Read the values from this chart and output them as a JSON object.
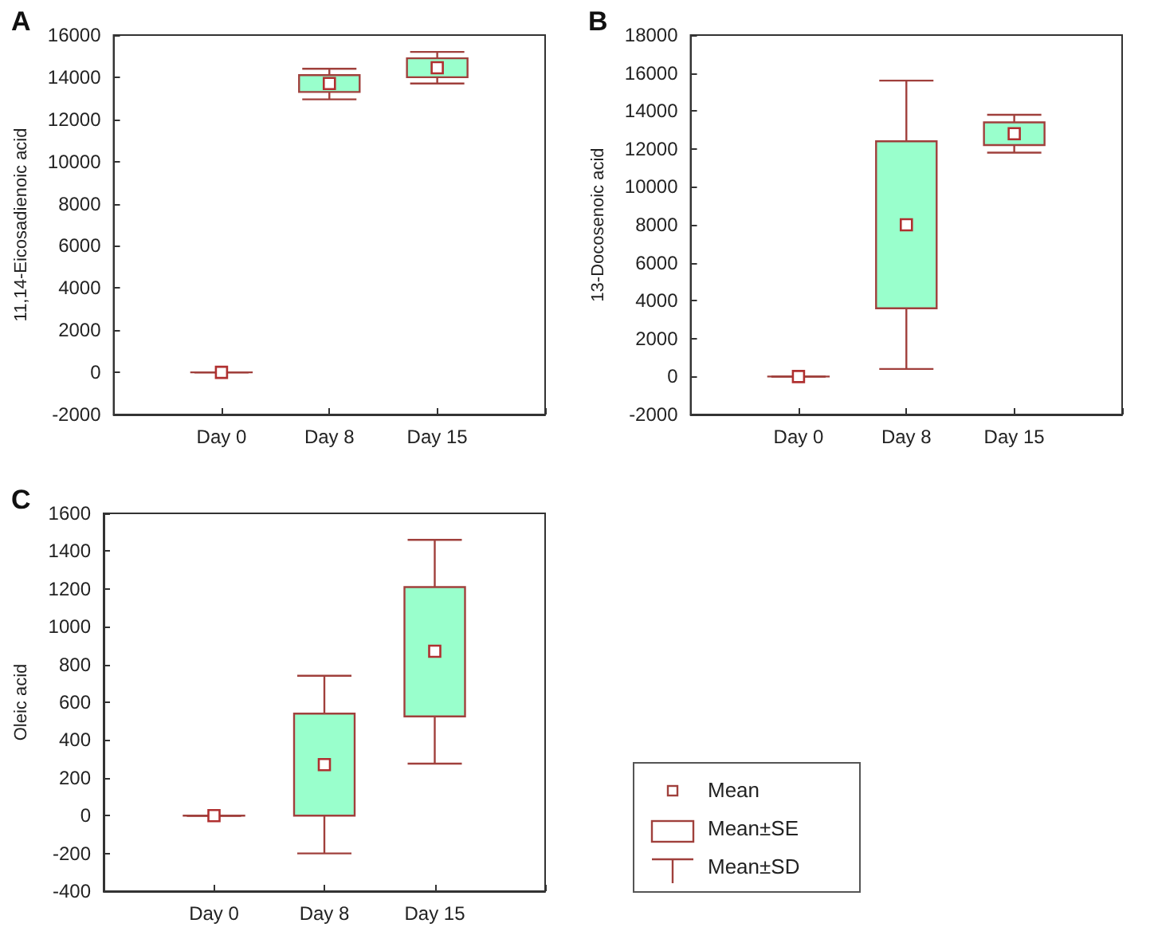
{
  "chart_data": [
    {
      "type": "box",
      "title": "A",
      "ylabel": "11,14-Eicosadienoic acid",
      "categories": [
        "Day 0",
        "Day 8",
        "Day 15"
      ],
      "color": "#99ffcc",
      "ylim": [
        -2000,
        16000
      ],
      "yticks": [
        -2000,
        0,
        2000,
        4000,
        6000,
        8000,
        10000,
        12000,
        14000,
        16000
      ],
      "boxes": [
        {
          "low": 0,
          "q1": 0,
          "q3": 0,
          "high": 0,
          "mean": 0
        },
        {
          "low": 12950,
          "q1": 13300,
          "q3": 14100,
          "high": 14400,
          "mean": 13700
        },
        {
          "low": 13700,
          "q1": 14000,
          "q3": 14900,
          "high": 15200,
          "mean": 14450
        }
      ]
    },
    {
      "type": "box",
      "title": "B",
      "ylabel": "13-Docosenoic acid",
      "categories": [
        "Day 0",
        "Day 8",
        "Day 15"
      ],
      "color": "#99ffcc",
      "ylim": [
        -2000,
        18000
      ],
      "yticks": [
        -2000,
        0,
        2000,
        4000,
        6000,
        8000,
        10000,
        12000,
        14000,
        16000,
        18000
      ],
      "boxes": [
        {
          "low": 0,
          "q1": 0,
          "q3": 0,
          "high": 0,
          "mean": 0
        },
        {
          "low": 400,
          "q1": 3600,
          "q3": 12400,
          "high": 15600,
          "mean": 8000
        },
        {
          "low": 11800,
          "q1": 12200,
          "q3": 13400,
          "high": 13800,
          "mean": 12800
        }
      ]
    },
    {
      "type": "box",
      "title": "C",
      "ylabel": "Oleic acid",
      "categories": [
        "Day 0",
        "Day 8",
        "Day 15"
      ],
      "color": "#99ffcc",
      "ylim": [
        -400,
        1600
      ],
      "yticks": [
        -400,
        -200,
        0,
        200,
        400,
        600,
        800,
        1000,
        1200,
        1400,
        1600
      ],
      "boxes": [
        {
          "low": 0,
          "q1": 0,
          "q3": 0,
          "high": 0,
          "mean": 0
        },
        {
          "low": -200,
          "q1": 0,
          "q3": 540,
          "high": 740,
          "mean": 270
        },
        {
          "low": 275,
          "q1": 525,
          "q3": 1210,
          "high": 1460,
          "mean": 870
        }
      ]
    },
    {
      "type": "other",
      "annotations": [
        "Mean",
        "Mean±SE",
        "Mean±SD"
      ]
    }
  ]
}
